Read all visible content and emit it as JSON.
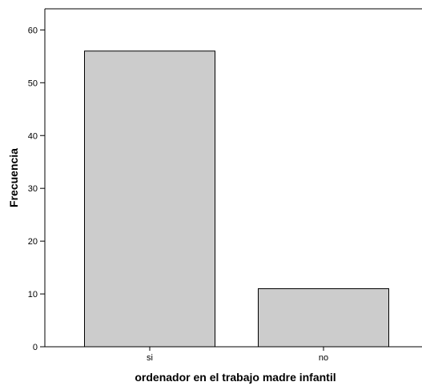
{
  "chart_data": {
    "type": "bar",
    "categories": [
      "si",
      "no"
    ],
    "values": [
      56,
      11
    ],
    "xlabel": "ordenador en el trabajo madre infantil",
    "ylabel": "Frecuencia",
    "ylim": [
      0,
      64
    ],
    "yticks": [
      0,
      10,
      20,
      30,
      40,
      50,
      60
    ],
    "grid": false,
    "legend": "none",
    "bar_color": "#cccccc",
    "edge_color": "#000000"
  }
}
